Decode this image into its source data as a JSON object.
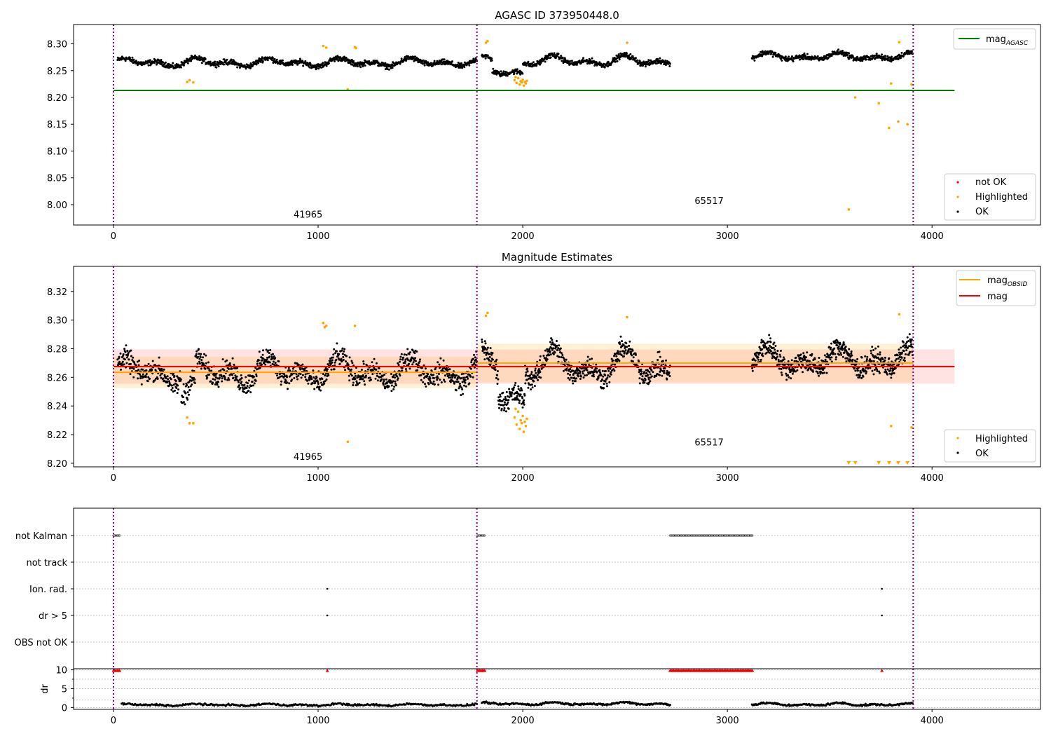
{
  "chart_data": [
    {
      "type": "scatter",
      "title": "AGASC ID 373950448.0",
      "xlim": [
        -195,
        4530
      ],
      "ylim": [
        7.962,
        8.336
      ],
      "xticks": [
        "0",
        "1000",
        "2000",
        "3000",
        "4000"
      ],
      "yticks": [
        "8.00",
        "8.05",
        "8.10",
        "8.15",
        "8.20",
        "8.25",
        "8.30"
      ],
      "ytick_values": [
        8.0,
        8.05,
        8.1,
        8.15,
        8.2,
        8.25,
        8.3
      ],
      "obs_boundaries": [
        0,
        1776,
        3908
      ],
      "obs_labels": [
        {
          "text": "41965",
          "x": 880,
          "y": 7.976
        },
        {
          "text": "65517",
          "x": 2840,
          "y": 8.001
        }
      ],
      "lines": [
        {
          "name": "mag_AGASC",
          "color": "#008000",
          "y": 8.213,
          "x": [
            0,
            4110
          ]
        }
      ],
      "legend_upper": [
        {
          "label_main": "mag",
          "label_sub": "AGASC",
          "color": "#008000"
        }
      ],
      "legend_lower": [
        {
          "label": "not OK",
          "color": "#ff0000"
        },
        {
          "label": "Highlighted",
          "color": "#ffa500"
        },
        {
          "label": "OK",
          "color": "#000000"
        }
      ],
      "series": [
        {
          "name": "OK",
          "color": "#000000",
          "segments": [
            {
              "x0": 20,
              "x1": 1776,
              "n": 950,
              "mean": 8.265,
              "amp": 0.009,
              "noise": 0.006
            },
            {
              "x0": 1800,
              "x1": 2720,
              "n": 500,
              "mean": 8.268,
              "amp": 0.011,
              "noise": 0.006
            },
            {
              "x0": 3120,
              "x1": 3905,
              "n": 430,
              "mean": 8.276,
              "amp": 0.008,
              "noise": 0.006
            }
          ]
        },
        {
          "name": "Highlighted",
          "color": "#ffa500",
          "points": [
            [
              360,
              8.229
            ],
            [
              372,
              8.232
            ],
            [
              390,
              8.228
            ],
            [
              1025,
              8.296
            ],
            [
              1040,
              8.293
            ],
            [
              1145,
              8.215
            ],
            [
              1180,
              8.294
            ],
            [
              1185,
              8.292
            ],
            [
              1820,
              8.302
            ],
            [
              1828,
              8.305
            ],
            [
              1960,
              8.232
            ],
            [
              1970,
              8.227
            ],
            [
              1978,
              8.236
            ],
            [
              1985,
              8.224
            ],
            [
              1990,
              8.23
            ],
            [
              1995,
              8.228
            ],
            [
              2000,
              8.233
            ],
            [
              2005,
              8.222
            ],
            [
              2010,
              8.229
            ],
            [
              2015,
              8.226
            ],
            [
              2020,
              8.231
            ],
            [
              1965,
              8.238
            ],
            [
              2510,
              8.302
            ],
            [
              3593,
              7.991
            ],
            [
              3625,
              8.2
            ],
            [
              3740,
              8.189
            ],
            [
              3790,
              8.143
            ],
            [
              3800,
              8.226
            ],
            [
              3835,
              8.155
            ],
            [
              3840,
              8.303
            ],
            [
              3880,
              8.15
            ],
            [
              3900,
              8.224
            ]
          ]
        }
      ]
    },
    {
      "type": "scatter",
      "title": "Magnitude Estimates",
      "xlim": [
        -195,
        4530
      ],
      "ylim": [
        8.1975,
        8.3375
      ],
      "xticks": [
        "0",
        "1000",
        "2000",
        "3000",
        "4000"
      ],
      "yticks": [
        "8.20",
        "8.22",
        "8.24",
        "8.26",
        "8.28",
        "8.30",
        "8.32"
      ],
      "ytick_values": [
        8.2,
        8.22,
        8.24,
        8.26,
        8.28,
        8.3,
        8.32
      ],
      "obs_boundaries": [
        0,
        1776,
        3908
      ],
      "obs_labels": [
        {
          "text": "41965",
          "x": 880,
          "y": 8.2025
        },
        {
          "text": "65517",
          "x": 2840,
          "y": 8.2125
        }
      ],
      "lines": [
        {
          "name": "mag",
          "color": "#ff0000",
          "y": 8.2675,
          "x": [
            0,
            4110
          ],
          "band": [
            8.2555,
            8.2795
          ],
          "band_color": "#ff0000"
        },
        {
          "name": "mag_OBSID 41965",
          "color": "#ffa500",
          "y": 8.2635,
          "x": [
            0,
            1776
          ],
          "band": [
            8.2525,
            8.2745
          ],
          "band_color": "#ffa500"
        },
        {
          "name": "mag_OBSID 65517",
          "color": "#ffa500",
          "y": 8.27,
          "x": [
            1776,
            3908
          ],
          "band": [
            8.2565,
            8.2835
          ],
          "band_color": "#ffa500"
        }
      ],
      "legend_upper": [
        {
          "label_main": "mag",
          "label_sub": "OBSID",
          "color": "#ffa500"
        },
        {
          "label_main": "mag",
          "label_sub": "",
          "color": "#ff0000"
        }
      ],
      "legend_lower": [
        {
          "label": "Highlighted",
          "color": "#ffa500"
        },
        {
          "label": "OK",
          "color": "#000000"
        }
      ],
      "series": [
        {
          "name": "OK",
          "color": "#000000",
          "segments": [
            {
              "x0": 20,
              "x1": 1776,
              "n": 1100,
              "mean": 8.264,
              "amp": 0.011,
              "noise": 0.009
            },
            {
              "x0": 1800,
              "x1": 2720,
              "n": 650,
              "mean": 8.268,
              "amp": 0.013,
              "noise": 0.009
            },
            {
              "x0": 3120,
              "x1": 3905,
              "n": 600,
              "mean": 8.272,
              "amp": 0.01,
              "noise": 0.009
            }
          ]
        },
        {
          "name": "Highlighted",
          "color": "#ffa500",
          "points": [
            [
              360,
              8.232
            ],
            [
              372,
              8.228
            ],
            [
              390,
              8.228
            ],
            [
              1025,
              8.298
            ],
            [
              1032,
              8.295
            ],
            [
              1040,
              8.296
            ],
            [
              1145,
              8.215
            ],
            [
              1180,
              8.296
            ],
            [
              1820,
              8.303
            ],
            [
              1828,
              8.305
            ],
            [
              1960,
              8.232
            ],
            [
              1970,
              8.227
            ],
            [
              1978,
              8.236
            ],
            [
              1985,
              8.224
            ],
            [
              1990,
              8.23
            ],
            [
              1995,
              8.228
            ],
            [
              2000,
              8.233
            ],
            [
              2005,
              8.222
            ],
            [
              2010,
              8.229
            ],
            [
              2015,
              8.226
            ],
            [
              2020,
              8.231
            ],
            [
              1965,
              8.238
            ],
            [
              2510,
              8.302
            ],
            [
              3800,
              8.226
            ],
            [
              3840,
              8.304
            ],
            [
              3900,
              8.225
            ]
          ]
        },
        {
          "name": "Highlighted (off scale)",
          "color": "#ffa500",
          "marker": "triangle-down",
          "points": [
            [
              3593,
              8.199
            ],
            [
              3625,
              8.199
            ],
            [
              3740,
              8.199
            ],
            [
              3790,
              8.199
            ],
            [
              3835,
              8.199
            ],
            [
              3880,
              8.199
            ]
          ]
        }
      ]
    },
    {
      "type": "scatter",
      "title": "",
      "xlim": [
        -195,
        4530
      ],
      "categories": [
        "not Kalman",
        "not track",
        "Ion. rad.",
        "dr > 5",
        "OBS not OK"
      ],
      "xticks": [
        "0",
        "1000",
        "2000",
        "3000",
        "4000"
      ],
      "obs_boundaries": [
        0,
        1776,
        3908
      ],
      "flags": {
        "not Kalman": [
          [
            0,
            35
          ],
          [
            1778,
            1815
          ],
          [
            2720,
            3125
          ]
        ],
        "not track": [],
        "Ion. rad.": [
          [
            1045,
            1045
          ],
          [
            3755,
            3755
          ]
        ],
        "dr > 5": [
          [
            1045,
            1045
          ],
          [
            3755,
            3755
          ]
        ],
        "OBS not OK": []
      }
    },
    {
      "type": "scatter",
      "title": "",
      "ylabel": "dr",
      "xlim": [
        -195,
        4530
      ],
      "ylim": [
        -0.5,
        10.3
      ],
      "yticks": [
        "0",
        "5",
        "10"
      ],
      "ytick_values": [
        0,
        5,
        10
      ],
      "xticks": [
        "0",
        "1000",
        "2000",
        "3000",
        "4000"
      ],
      "obs_boundaries": [
        0,
        1776,
        3908
      ],
      "series": [
        {
          "name": "dr",
          "color": "#000000",
          "segments": [
            {
              "x0": 40,
              "x1": 1776,
              "n": 400,
              "mean": 0.7,
              "amp": 0.3,
              "noise": 0.3
            },
            {
              "x0": 1800,
              "x1": 2720,
              "n": 260,
              "mean": 1.0,
              "amp": 0.4,
              "noise": 0.3
            },
            {
              "x0": 3120,
              "x1": 3905,
              "n": 240,
              "mean": 0.8,
              "amp": 0.4,
              "noise": 0.3
            }
          ]
        },
        {
          "name": "dr (off scale)",
          "color": "#ff0000",
          "marker": "triangle-up",
          "ranges": [
            [
              0,
              35
            ],
            [
              1778,
              1815
            ],
            [
              2720,
              3125
            ]
          ],
          "single": [
            1045,
            3755
          ],
          "y": 9.8
        }
      ]
    }
  ]
}
